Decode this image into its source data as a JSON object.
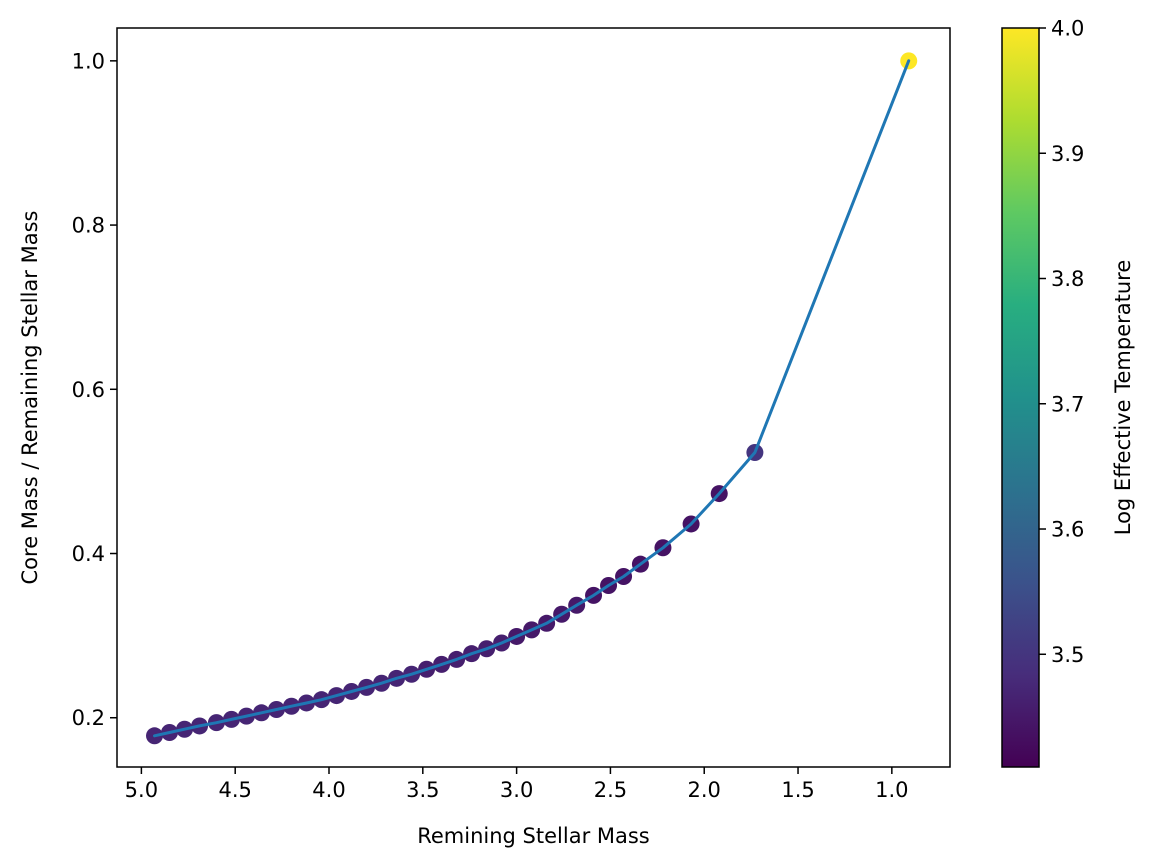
{
  "chart_data": {
    "type": "scatter",
    "xlabel": "Remining Stellar Mass",
    "ylabel": "Core Mass / Remaining Stellar Mass",
    "colorbar_label": "Log Effective Temperature",
    "x_reversed": true,
    "xlim": [
      5.13,
      0.69
    ],
    "ylim": [
      0.14,
      1.04
    ],
    "x_ticks": [
      5.0,
      4.5,
      4.0,
      3.5,
      3.0,
      2.5,
      2.0,
      1.5,
      1.0
    ],
    "x_tick_labels": [
      "5.0",
      "4.5",
      "4.0",
      "3.5",
      "3.0",
      "2.5",
      "2.0",
      "1.5",
      "1.0"
    ],
    "y_ticks": [
      0.2,
      0.4,
      0.6,
      0.8,
      1.0
    ],
    "y_tick_labels": [
      "0.2",
      "0.4",
      "0.6",
      "0.8",
      "1.0"
    ],
    "colorbar_range": [
      3.41,
      4.0
    ],
    "colorbar_ticks": [
      3.5,
      3.6,
      3.7,
      3.8,
      3.9,
      4.0
    ],
    "colorbar_tick_labels": [
      "3.5",
      "3.6",
      "3.7",
      "3.8",
      "3.9",
      "4.0"
    ],
    "colormap": "viridis",
    "line_color": "#1f77b4",
    "grid": false,
    "points": [
      {
        "x": 4.93,
        "y": 0.178,
        "c": 3.47
      },
      {
        "x": 4.85,
        "y": 0.182,
        "c": 3.47
      },
      {
        "x": 4.77,
        "y": 0.186,
        "c": 3.47
      },
      {
        "x": 4.69,
        "y": 0.19,
        "c": 3.47
      },
      {
        "x": 4.6,
        "y": 0.194,
        "c": 3.47
      },
      {
        "x": 4.52,
        "y": 0.198,
        "c": 3.47
      },
      {
        "x": 4.44,
        "y": 0.202,
        "c": 3.47
      },
      {
        "x": 4.36,
        "y": 0.206,
        "c": 3.47
      },
      {
        "x": 4.28,
        "y": 0.21,
        "c": 3.47
      },
      {
        "x": 4.2,
        "y": 0.214,
        "c": 3.47
      },
      {
        "x": 4.12,
        "y": 0.218,
        "c": 3.47
      },
      {
        "x": 4.04,
        "y": 0.222,
        "c": 3.47
      },
      {
        "x": 3.96,
        "y": 0.227,
        "c": 3.47
      },
      {
        "x": 3.88,
        "y": 0.232,
        "c": 3.47
      },
      {
        "x": 3.8,
        "y": 0.237,
        "c": 3.47
      },
      {
        "x": 3.72,
        "y": 0.242,
        "c": 3.47
      },
      {
        "x": 3.64,
        "y": 0.248,
        "c": 3.47
      },
      {
        "x": 3.56,
        "y": 0.253,
        "c": 3.47
      },
      {
        "x": 3.48,
        "y": 0.259,
        "c": 3.46
      },
      {
        "x": 3.4,
        "y": 0.265,
        "c": 3.46
      },
      {
        "x": 3.32,
        "y": 0.271,
        "c": 3.46
      },
      {
        "x": 3.24,
        "y": 0.278,
        "c": 3.46
      },
      {
        "x": 3.16,
        "y": 0.284,
        "c": 3.46
      },
      {
        "x": 3.08,
        "y": 0.291,
        "c": 3.46
      },
      {
        "x": 3.0,
        "y": 0.299,
        "c": 3.45
      },
      {
        "x": 2.92,
        "y": 0.307,
        "c": 3.45
      },
      {
        "x": 2.84,
        "y": 0.315,
        "c": 3.45
      },
      {
        "x": 2.76,
        "y": 0.326,
        "c": 3.45
      },
      {
        "x": 2.68,
        "y": 0.337,
        "c": 3.45
      },
      {
        "x": 2.59,
        "y": 0.349,
        "c": 3.44
      },
      {
        "x": 2.51,
        "y": 0.361,
        "c": 3.44
      },
      {
        "x": 2.43,
        "y": 0.372,
        "c": 3.44
      },
      {
        "x": 2.34,
        "y": 0.387,
        "c": 3.44
      },
      {
        "x": 2.22,
        "y": 0.407,
        "c": 3.44
      },
      {
        "x": 2.07,
        "y": 0.436,
        "c": 3.44
      },
      {
        "x": 1.92,
        "y": 0.473,
        "c": 3.44
      },
      {
        "x": 1.73,
        "y": 0.523,
        "c": 3.5
      },
      {
        "x": 0.91,
        "y": 1.0,
        "c": 4.0
      }
    ]
  }
}
